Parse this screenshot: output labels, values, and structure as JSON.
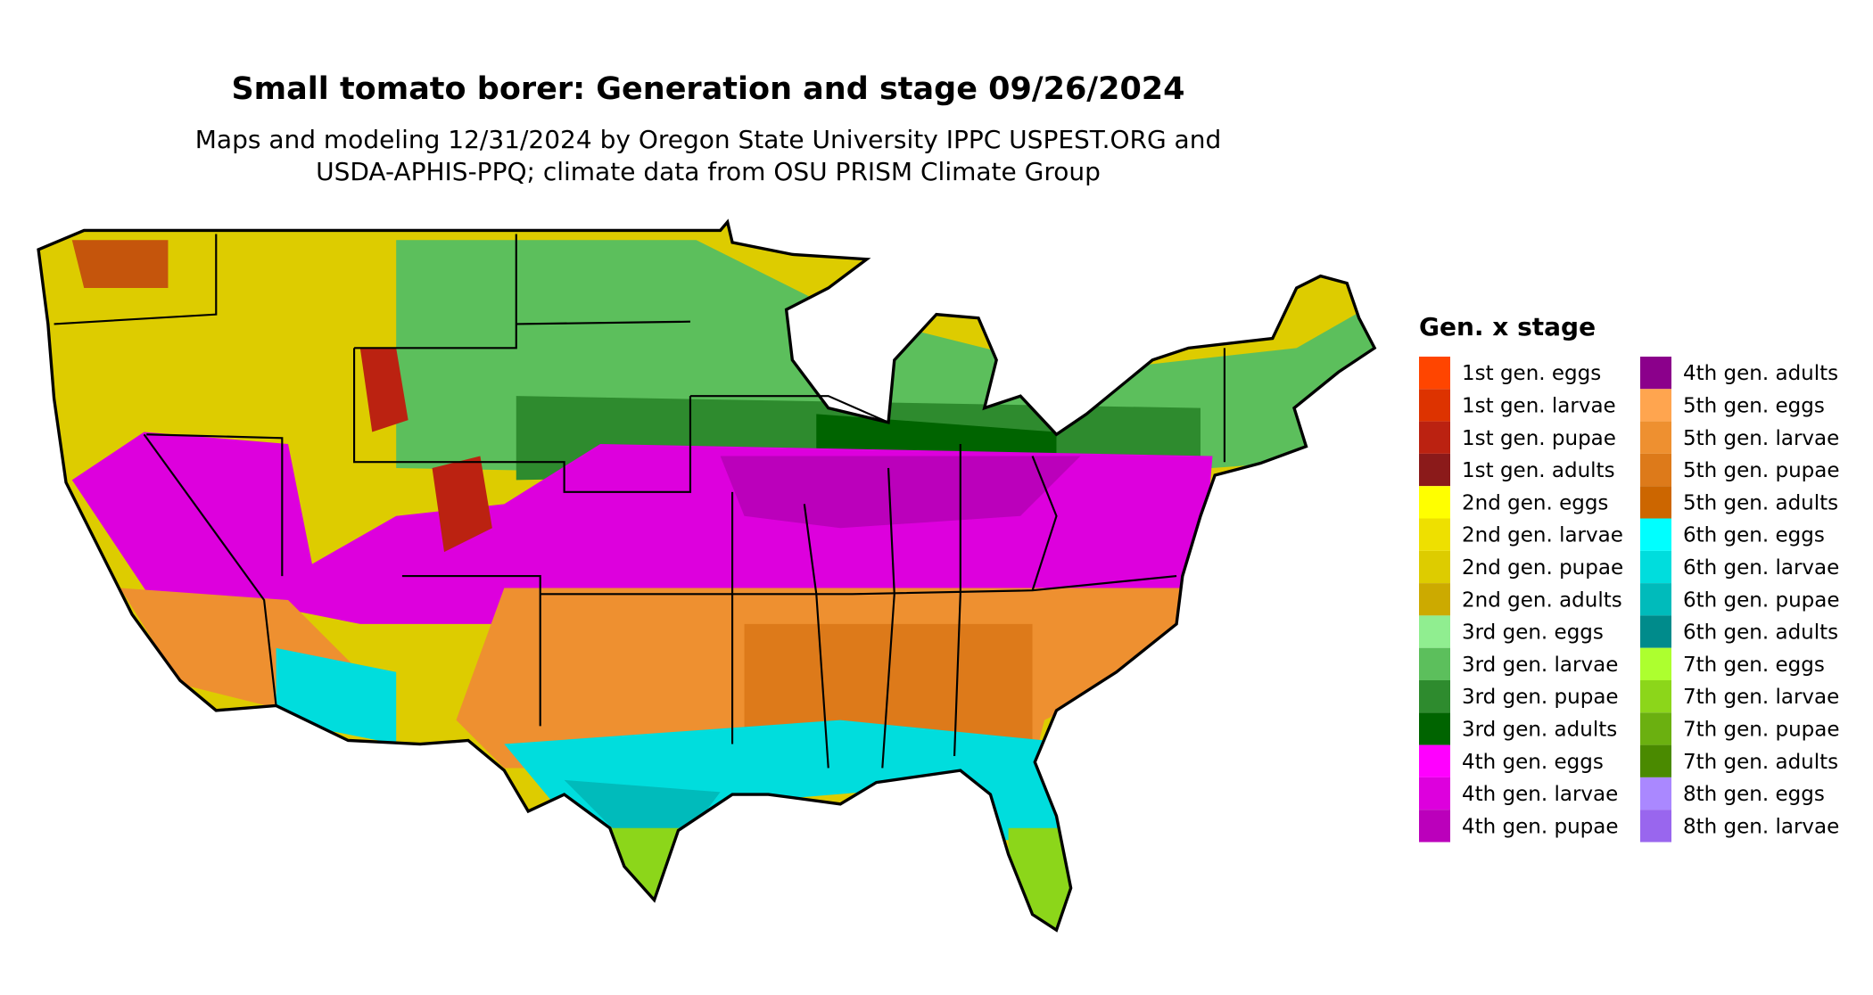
{
  "title": "Small tomato borer: Generation and stage 09/26/2024",
  "subtitle": [
    "Maps and modeling 12/31/2024 by Oregon State University IPPC USPEST.ORG and",
    "USDA-APHIS-PPQ; climate data from OSU PRISM Climate Group"
  ],
  "legend": {
    "title": "Gen. x stage",
    "items": [
      {
        "label": "1st gen. eggs",
        "color": "#ff4500"
      },
      {
        "label": "1st gen. larvae",
        "color": "#dd3300"
      },
      {
        "label": "1st gen. pupae",
        "color": "#bb2211"
      },
      {
        "label": "1st gen. adults",
        "color": "#8b1a1a"
      },
      {
        "label": "2nd gen. eggs",
        "color": "#ffff00"
      },
      {
        "label": "2nd gen. larvae",
        "color": "#eee000"
      },
      {
        "label": "2nd gen. pupae",
        "color": "#ddcc00"
      },
      {
        "label": "2nd gen. adults",
        "color": "#ccaa00"
      },
      {
        "label": "3rd gen. eggs",
        "color": "#90ee90"
      },
      {
        "label": "3rd gen. larvae",
        "color": "#5cbf5c"
      },
      {
        "label": "3rd gen. pupae",
        "color": "#2e8b2e"
      },
      {
        "label": "3rd gen. adults",
        "color": "#006400"
      },
      {
        "label": "4th gen. eggs",
        "color": "#ff00ff"
      },
      {
        "label": "4th gen. larvae",
        "color": "#dd00dd"
      },
      {
        "label": "4th gen. pupae",
        "color": "#bb00bb"
      },
      {
        "label": "4th gen. adults",
        "color": "#8b008b"
      },
      {
        "label": "5th gen. eggs",
        "color": "#ffa54f"
      },
      {
        "label": "5th gen. larvae",
        "color": "#ee9030"
      },
      {
        "label": "5th gen. pupae",
        "color": "#dd7a1a"
      },
      {
        "label": "5th gen. adults",
        "color": "#cc6600"
      },
      {
        "label": "6th gen. eggs",
        "color": "#00ffff"
      },
      {
        "label": "6th gen. larvae",
        "color": "#00dddd"
      },
      {
        "label": "6th gen. pupae",
        "color": "#00bbbb"
      },
      {
        "label": "6th gen. adults",
        "color": "#008b8b"
      },
      {
        "label": "7th gen. eggs",
        "color": "#adff2f"
      },
      {
        "label": "7th gen. larvae",
        "color": "#8cd61a"
      },
      {
        "label": "7th gen. pupae",
        "color": "#6bb010"
      },
      {
        "label": "7th gen. adults",
        "color": "#4a8a00"
      },
      {
        "label": "8th gen. eggs",
        "color": "#aa88ff"
      },
      {
        "label": "8th gen. larvae",
        "color": "#9966ee"
      }
    ]
  }
}
